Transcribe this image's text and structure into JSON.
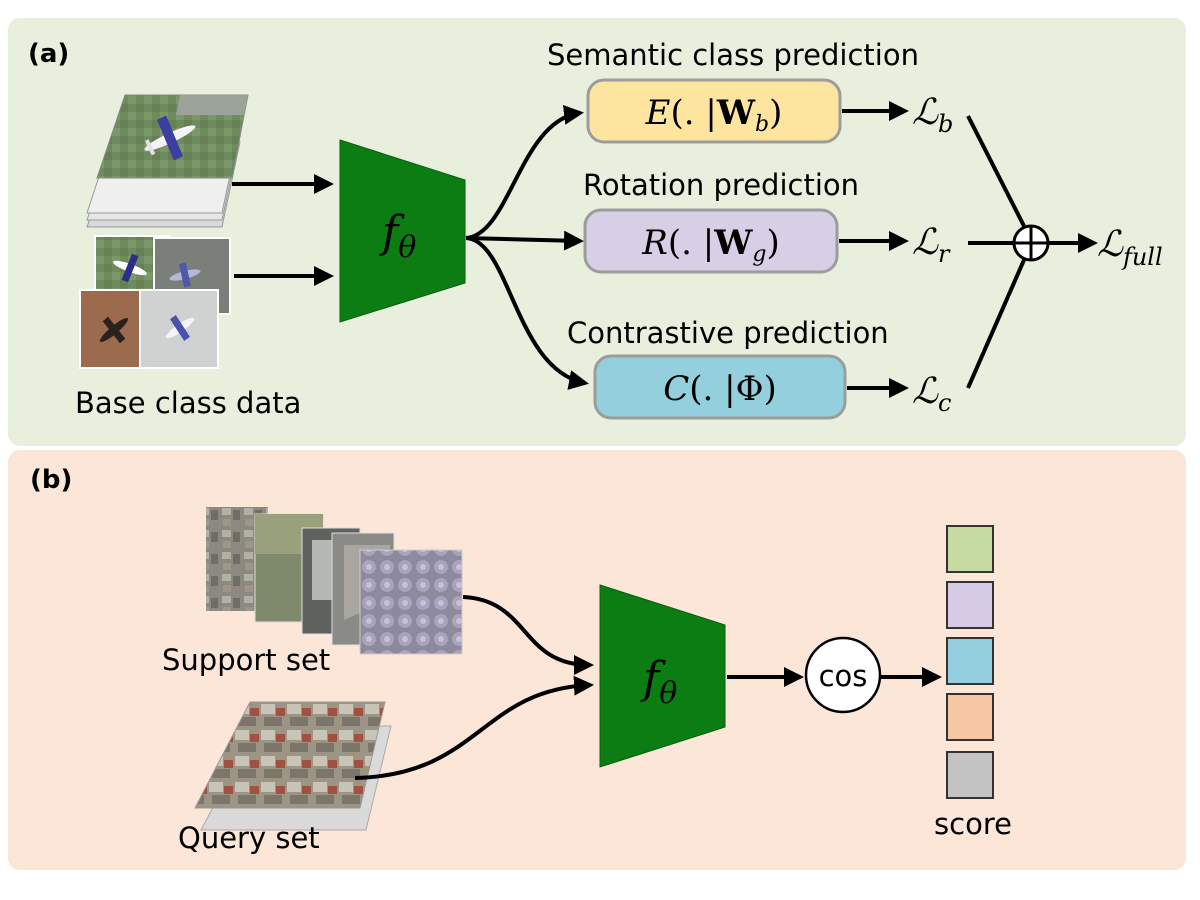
{
  "panel_a": {
    "label": "(a)",
    "input_caption": "Base class data",
    "encoder": {
      "func": "f",
      "subscript": "θ"
    },
    "heads": [
      {
        "title": "Semantic class prediction",
        "fn": "E",
        "arg_bold": "W",
        "arg_sub": "b",
        "fill": "#fde5a0",
        "loss_sub": "b"
      },
      {
        "title": "Rotation prediction",
        "fn": "R",
        "arg_bold": "W",
        "arg_sub": "g",
        "fill": "#d8cfe6",
        "loss_sub": "r"
      },
      {
        "title": "Contrastive prediction",
        "fn": "C",
        "arg_bold": "",
        "arg_greek": "Φ",
        "arg_sub": "",
        "fill": "#93cfdc",
        "loss_sub": "c"
      }
    ],
    "loss_symbol": "ℒ",
    "sum_symbol": "⊕",
    "output_loss_sub": "full"
  },
  "panel_b": {
    "label": "(b)",
    "support_caption": "Support set",
    "query_caption": "Query set",
    "encoder": {
      "func": "f",
      "subscript": "θ"
    },
    "similarity_label": "cos",
    "score_caption": "score",
    "score_colors": [
      "#c7dca4",
      "#d5cbe5",
      "#93cfdc",
      "#f7c6a3",
      "#c3c3c3"
    ]
  },
  "colors": {
    "panel_a_bg": "#e8efdc",
    "panel_b_bg": "#fbe6d8",
    "encoder_green": "#0c7d12"
  }
}
